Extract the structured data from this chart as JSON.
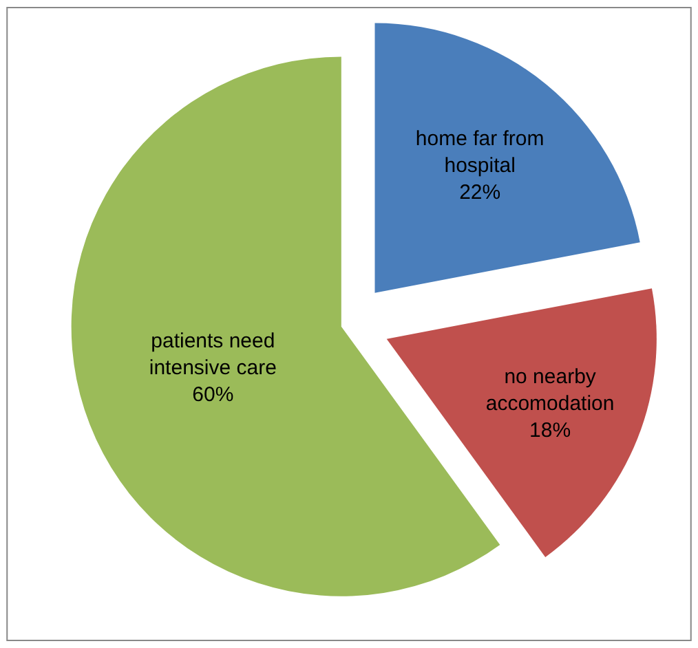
{
  "chart_data": {
    "type": "pie",
    "categories": [
      "home far from hospital",
      "no nearby accomodation",
      "patients need intensive care"
    ],
    "values": [
      22,
      18,
      60
    ],
    "colors": [
      "#4a7ebb",
      "#c0504d",
      "#9bbb59"
    ],
    "value_labels": [
      "22%",
      "18%",
      "60%"
    ],
    "legend": false
  }
}
